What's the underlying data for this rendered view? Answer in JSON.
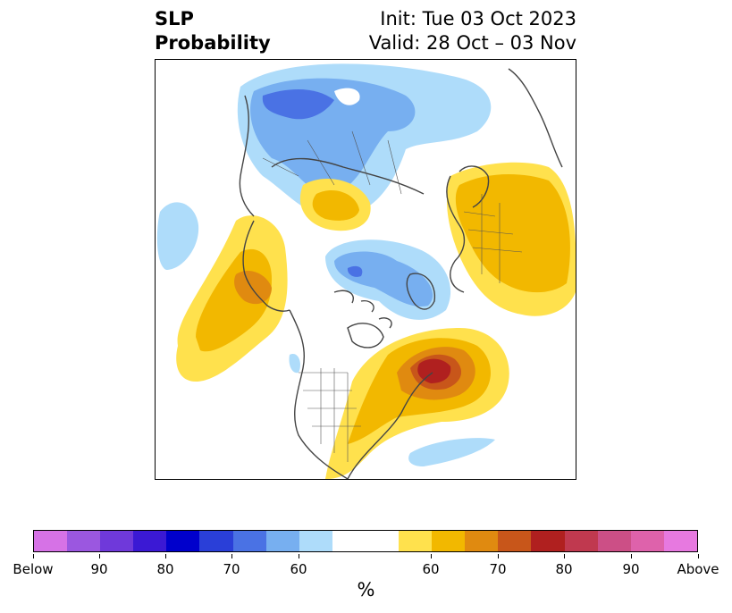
{
  "title": {
    "left_line1": "SLP",
    "left_line2": "Probability",
    "right_line1": "Init: Tue 03 Oct 2023",
    "right_line2": "Valid: 28 Oct – 03 Nov"
  },
  "colorbar": {
    "unit": "%",
    "colors": [
      "#d672e6",
      "#9b57e0",
      "#6f39da",
      "#3b19d4",
      "#0000cc",
      "#2a3fd8",
      "#4a72e4",
      "#77aff0",
      "#aedcfa",
      "#ffffff",
      "#ffe14d",
      "#f2b800",
      "#e08a10",
      "#c8561a",
      "#b0201f",
      "#c0394f",
      "#cc4f86",
      "#de62ab",
      "#e779e0"
    ],
    "tick_labels": [
      "Below",
      "90",
      "80",
      "70",
      "60",
      "60",
      "70",
      "80",
      "90",
      "Above"
    ]
  },
  "map_layers": {
    "below_colors": [
      "#aedcfa",
      "#77aff0",
      "#4a72e4"
    ],
    "above_colors": [
      "#ffe14d",
      "#f2b800",
      "#e08a10",
      "#c8561a",
      "#b0201f"
    ],
    "coastline_color": "#444444"
  }
}
